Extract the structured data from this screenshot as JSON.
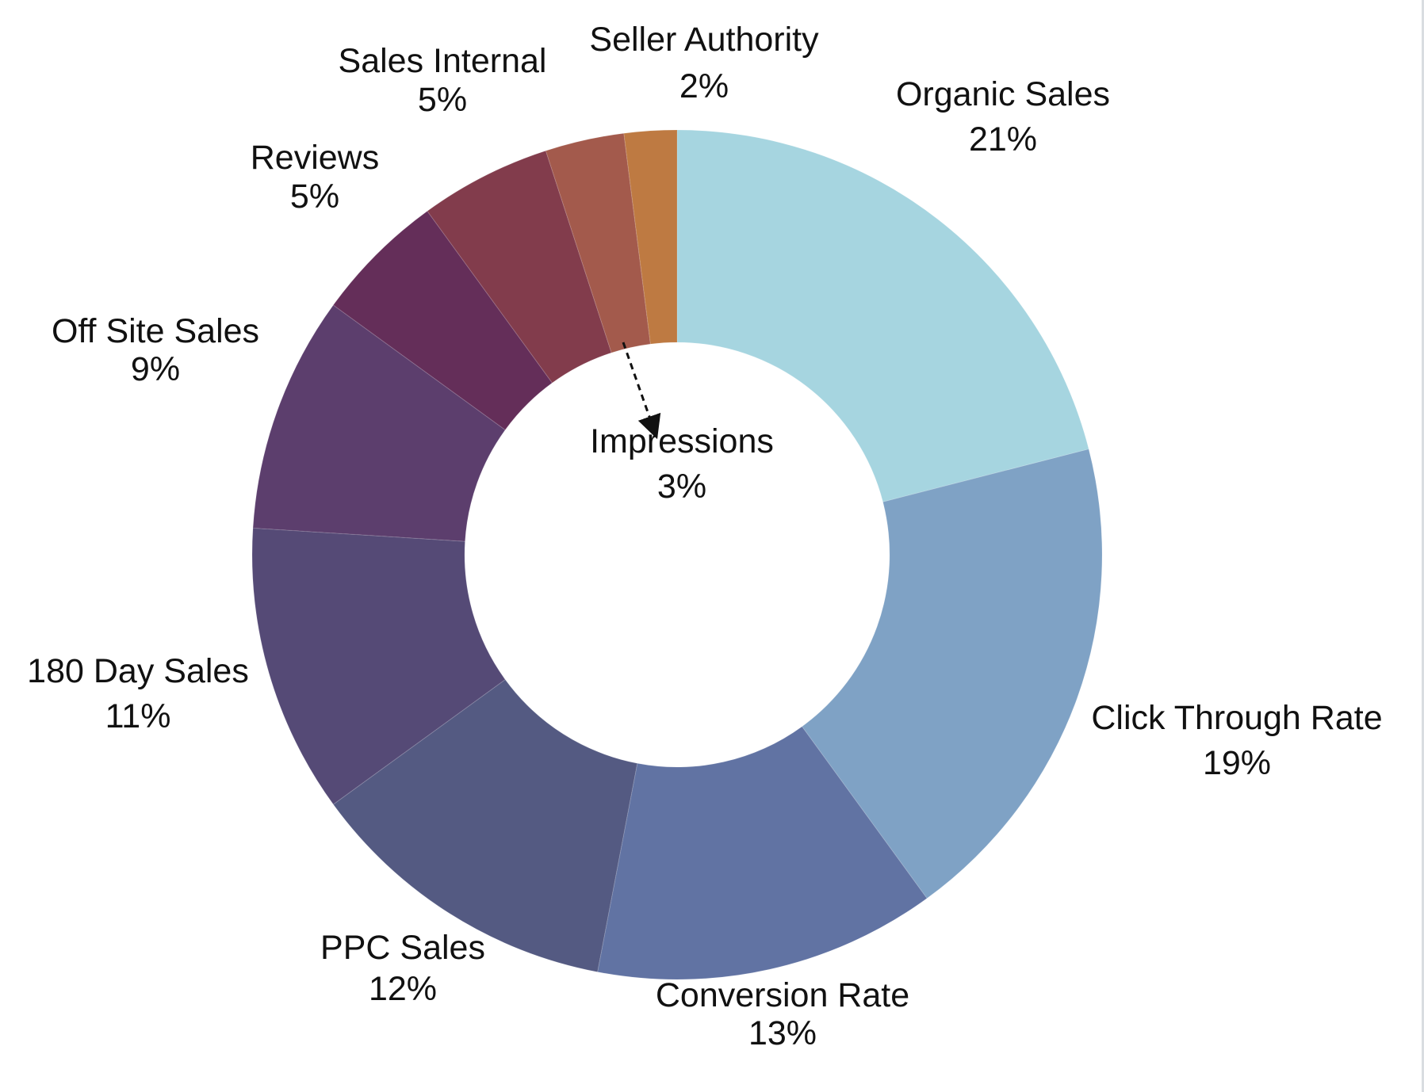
{
  "chart_data": {
    "type": "pie",
    "variant": "donut",
    "title": "",
    "start_angle_deg": 0,
    "direction": "clockwise",
    "grid": false,
    "legend": "none",
    "slices": [
      {
        "label": "Organic Sales",
        "value": 21,
        "pct_label": "21%",
        "color": "#A6D5E0"
      },
      {
        "label": "Click Through Rate",
        "value": 19,
        "pct_label": "19%",
        "color": "#7FA2C5"
      },
      {
        "label": "Conversion Rate",
        "value": 13,
        "pct_label": "13%",
        "color": "#6173A3"
      },
      {
        "label": "PPC Sales",
        "value": 12,
        "pct_label": "12%",
        "color": "#545A82"
      },
      {
        "label": "180 Day Sales",
        "value": 11,
        "pct_label": "11%",
        "color": "#554A76"
      },
      {
        "label": "Off Site Sales",
        "value": 9,
        "pct_label": "9%",
        "color": "#5C3E6D"
      },
      {
        "label": "Reviews",
        "value": 5,
        "pct_label": "5%",
        "color": "#642E59"
      },
      {
        "label": "Sales Internal",
        "value": 5,
        "pct_label": "5%",
        "color": "#823C4C"
      },
      {
        "label": "Impressions",
        "value": 3,
        "pct_label": "3%",
        "color": "#A35A4C"
      },
      {
        "label": "Seller Authority",
        "value": 2,
        "pct_label": "2%",
        "color": "#BE7A42"
      }
    ]
  }
}
